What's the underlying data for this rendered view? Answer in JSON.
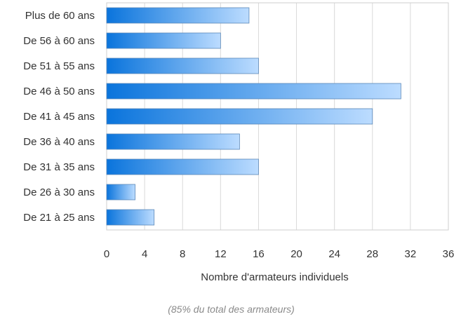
{
  "chart_data": {
    "type": "bar",
    "orientation": "horizontal",
    "categories": [
      "Plus de 60 ans",
      "De 56 à 60 ans",
      "De 51 à 55 ans",
      "De 46 à 50 ans",
      "De 41 à 45 ans",
      "De 36 à 40 ans",
      "De 31 à 35 ans",
      "De 26 à 30 ans",
      "De 21 à 25 ans"
    ],
    "values": [
      15,
      12,
      16,
      31,
      28,
      14,
      16,
      3,
      5
    ],
    "xlim": [
      0,
      36
    ],
    "xticks": [
      "0",
      "4",
      "8",
      "12",
      "16",
      "20",
      "24",
      "28",
      "32",
      "36"
    ],
    "xlabel": "Nombre d'armateurs individuels",
    "caption": "(85% du total des armateurs)",
    "grid": "vertical",
    "colors": {
      "bar_start": "#0a74dc",
      "bar_end": "#bcdcff",
      "bar_stroke": "#5b88b8",
      "grid": "#d9d9d9"
    }
  }
}
